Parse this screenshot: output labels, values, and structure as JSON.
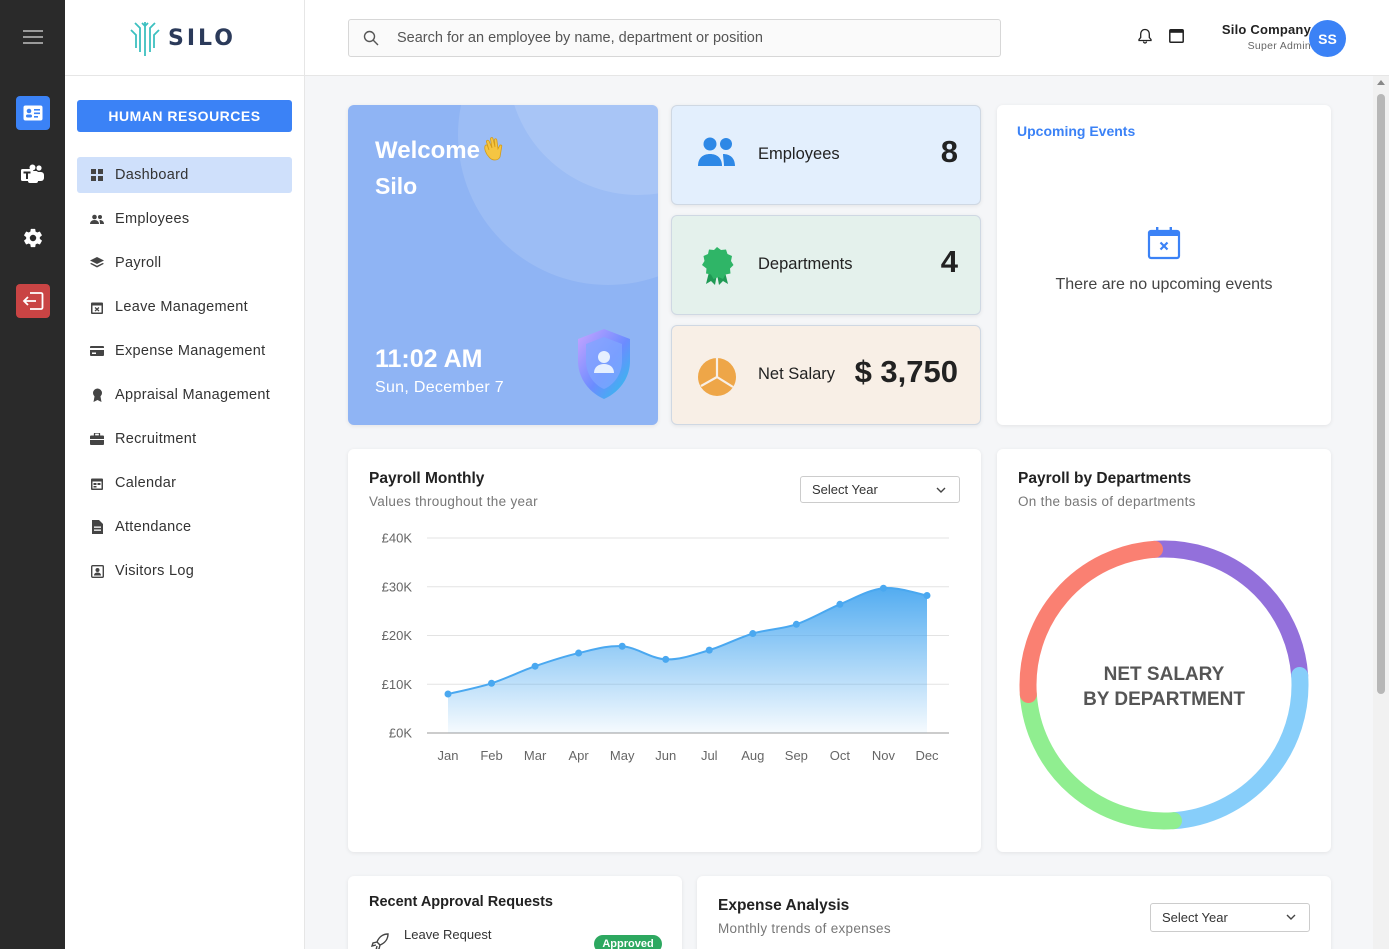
{
  "app": {
    "logo_text": "SILO"
  },
  "sidebar": {
    "section_button": "HUMAN RESOURCES",
    "items": [
      {
        "label": "Dashboard",
        "icon": "grid-icon",
        "active": true
      },
      {
        "label": "Employees",
        "icon": "users-icon"
      },
      {
        "label": "Payroll",
        "icon": "layers-icon"
      },
      {
        "label": "Leave Management",
        "icon": "calendar-x-icon"
      },
      {
        "label": "Expense Management",
        "icon": "credit-card-icon"
      },
      {
        "label": "Appraisal Management",
        "icon": "award-icon"
      },
      {
        "label": "Recruitment",
        "icon": "briefcase-icon"
      },
      {
        "label": "Calendar",
        "icon": "calendar-icon"
      },
      {
        "label": "Attendance",
        "icon": "document-icon"
      },
      {
        "label": "Visitors Log",
        "icon": "id-badge-icon"
      }
    ]
  },
  "topbar": {
    "search_placeholder": "Search for an employee by name, department or position",
    "company_name": "Silo Company",
    "role": "Super Admin",
    "avatar_initials": "SS"
  },
  "welcome": {
    "greeting": "Welcome",
    "name": "Silo",
    "time": "11:02 AM",
    "date": "Sun, December 7"
  },
  "stats": {
    "employees": {
      "label": "Employees",
      "value": "8",
      "color": "#e3effd"
    },
    "departments": {
      "label": "Departments",
      "value": "4",
      "color": "#e4f1ec"
    },
    "net_salary": {
      "label": "Net Salary",
      "value": "$ 3,750",
      "color": "#f8efe6"
    }
  },
  "events": {
    "title": "Upcoming Events",
    "empty_message": "There are no upcoming events"
  },
  "payroll_monthly": {
    "title": "Payroll Monthly",
    "subtitle": "Values throughout the year",
    "select_label": "Select Year"
  },
  "payroll_departments": {
    "title": "Payroll by Departments",
    "subtitle": "On the basis of departments",
    "center_line1": "NET SALARY",
    "center_line2": "BY DEPARTMENT"
  },
  "recent_requests": {
    "title": "Recent Approval Requests",
    "item_title": "Leave Request",
    "item_status": "Approved"
  },
  "expense_analysis": {
    "title": "Expense Analysis",
    "subtitle": "Monthly trends of expenses",
    "select_label": "Select Year"
  },
  "chart_data": [
    {
      "type": "area",
      "title": "Payroll Monthly",
      "categories": [
        "Jan",
        "Feb",
        "Mar",
        "Apr",
        "May",
        "Jun",
        "Jul",
        "Aug",
        "Sep",
        "Oct",
        "Nov",
        "Dec"
      ],
      "values": [
        8000,
        10200,
        13700,
        16400,
        17800,
        15100,
        17000,
        20400,
        22300,
        26400,
        29700,
        28200
      ],
      "ylim": [
        0,
        40000
      ],
      "yticks": [
        "£0K",
        "£10K",
        "£20K",
        "£30K",
        "£40K"
      ],
      "color": "#4aa8f0",
      "grid": true
    },
    {
      "type": "pie",
      "title": "Payroll by Departments",
      "style": "donut",
      "slices": [
        {
          "value": 25,
          "color": "#9370db"
        },
        {
          "value": 25,
          "color": "#87cefa"
        },
        {
          "value": 25,
          "color": "#90ee90"
        },
        {
          "value": 25,
          "color": "#fa8072"
        }
      ]
    }
  ]
}
